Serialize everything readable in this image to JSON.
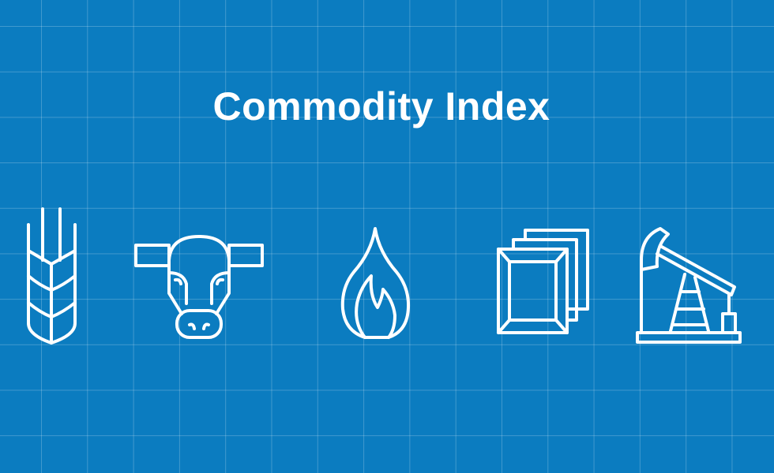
{
  "title": "Commodity Index",
  "colors": {
    "background": "#0b7cc0",
    "grid": "#4a9fd3",
    "foreground": "#ffffff"
  },
  "icons": [
    "wheat-icon",
    "cow-icon",
    "flame-icon",
    "gold-bars-icon",
    "oil-pump-icon"
  ]
}
